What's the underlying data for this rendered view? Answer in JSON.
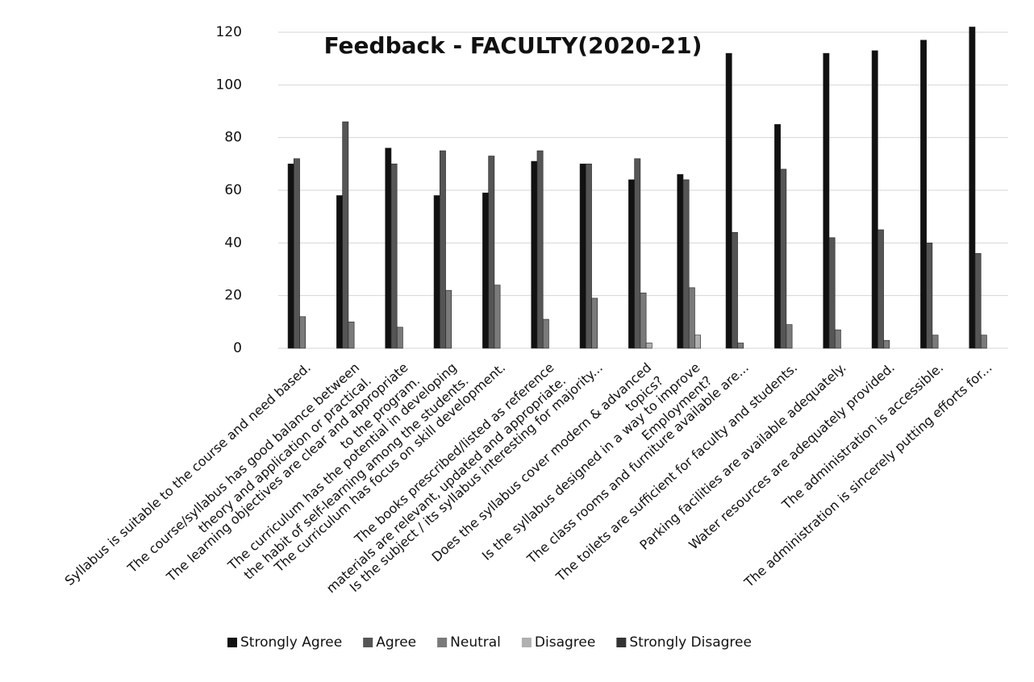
{
  "chart_data": {
    "type": "bar",
    "title": "Feedback - FACULTY(2020-21)",
    "categories": [
      [
        "Syllabus is suitable to the course and need based."
      ],
      [
        "The course/syllabus has good balance between",
        "theory and application or practical."
      ],
      [
        "The learning objectives are clear and appropriate",
        "to the program."
      ],
      [
        "The curriculum has the potential in developing",
        "the habit of self-learning among the students."
      ],
      [
        "The curriculum has focus on skill development."
      ],
      [
        "The books prescribed/listed as reference",
        "materials are relevant, updated and appropriate."
      ],
      [
        "Is the subject / its syllabus interesting for majority..."
      ],
      [
        "Does the syllabus cover modern & advanced",
        "topics?"
      ],
      [
        "Is the syllabus designed in a way to improve",
        "Employment?"
      ],
      [
        "The class rooms and furniture available are..."
      ],
      [
        "The toilets are sufficient for faculty and students."
      ],
      [
        "Parking facilities are available adequately."
      ],
      [
        "Water resources are adequately provided."
      ],
      [
        "The administration is accessible."
      ],
      [
        "The administration is sincerely putting efforts for..."
      ]
    ],
    "series": [
      {
        "name": "Strongly Agree",
        "color": "#111111",
        "values": [
          70,
          58,
          76,
          58,
          59,
          71,
          70,
          64,
          66,
          112,
          85,
          112,
          113,
          117,
          122
        ]
      },
      {
        "name": "Agree",
        "color": "#555555",
        "values": [
          72,
          86,
          70,
          75,
          73,
          75,
          70,
          72,
          64,
          44,
          68,
          42,
          45,
          40,
          36
        ]
      },
      {
        "name": "Neutral",
        "color": "#7a7a7a",
        "values": [
          12,
          10,
          8,
          22,
          24,
          11,
          19,
          21,
          23,
          2,
          9,
          7,
          3,
          5,
          5
        ]
      },
      {
        "name": "Disagree",
        "color": "#b0b0b0",
        "values": [
          0,
          0,
          0,
          0,
          0,
          0,
          0,
          2,
          5,
          0,
          0,
          0,
          0,
          0,
          0
        ]
      },
      {
        "name": "Strongly Disagree",
        "color": "#333333",
        "values": [
          0,
          0,
          0,
          0,
          0,
          0,
          0,
          0,
          0,
          0,
          0,
          0,
          0,
          0,
          0
        ]
      }
    ],
    "ylim": [
      0,
      120
    ],
    "yticks": [
      0,
      20,
      40,
      60,
      80,
      100,
      120
    ],
    "grid": true,
    "legend": "bottom"
  }
}
